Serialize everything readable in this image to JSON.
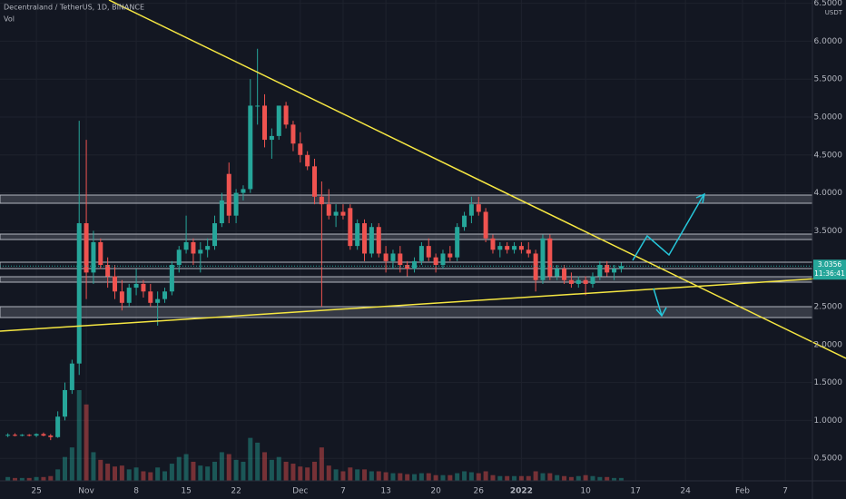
{
  "header": {
    "symbol": "Decentraland / TetherUS, 1D, BINANCE",
    "volume_label": "Vol"
  },
  "chart_data": {
    "type": "candlestick",
    "open": [
      0.8,
      0.81,
      0.8,
      0.81,
      0.8,
      0.82,
      0.8,
      0.78,
      1.05,
      1.4,
      1.75,
      3.6,
      2.95,
      3.35,
      3.05,
      2.9,
      2.7,
      2.55,
      2.75,
      2.8,
      2.7,
      2.55,
      2.6,
      2.7,
      3.05,
      3.25,
      3.35,
      3.2,
      3.25,
      3.3,
      3.6,
      4.25,
      3.7,
      4.0,
      4.05,
      5.15,
      5.15,
      4.7,
      4.75,
      5.15,
      4.9,
      4.65,
      4.5,
      4.35,
      3.95,
      3.85,
      3.7,
      3.75,
      3.8,
      3.3,
      3.6,
      3.2,
      3.55,
      3.2,
      3.1,
      3.2,
      3.05,
      3.0,
      3.1,
      3.3,
      3.15,
      3.05,
      3.2,
      3.15,
      3.55,
      3.7,
      3.85,
      3.75,
      3.4,
      3.25,
      3.3,
      3.25,
      3.3,
      3.25,
      3.2,
      2.85,
      3.4,
      2.9,
      3.0,
      2.85,
      2.8,
      2.85,
      2.8,
      2.9,
      3.05,
      2.95,
      3.0
    ],
    "high": [
      0.83,
      0.83,
      0.82,
      0.82,
      0.83,
      0.84,
      0.82,
      1.12,
      1.5,
      1.8,
      4.95,
      4.7,
      3.5,
      3.4,
      3.15,
      3.05,
      2.85,
      2.8,
      3.0,
      2.85,
      2.8,
      2.7,
      2.75,
      3.1,
      3.3,
      3.7,
      3.4,
      3.35,
      3.4,
      3.7,
      4.0,
      4.4,
      4.05,
      4.1,
      5.5,
      5.9,
      5.3,
      4.85,
      5.15,
      5.2,
      4.95,
      4.8,
      4.55,
      4.45,
      4.15,
      4.05,
      3.85,
      3.85,
      3.85,
      3.65,
      3.65,
      3.6,
      3.6,
      3.3,
      3.25,
      3.3,
      3.1,
      3.15,
      3.35,
      3.4,
      3.2,
      3.25,
      3.3,
      3.6,
      3.75,
      3.95,
      3.95,
      3.8,
      3.45,
      3.35,
      3.35,
      3.35,
      3.35,
      3.35,
      3.25,
      3.45,
      3.45,
      3.05,
      3.05,
      2.95,
      2.9,
      2.9,
      2.95,
      3.1,
      3.1,
      3.05,
      3.08
    ],
    "low": [
      0.78,
      0.79,
      0.79,
      0.79,
      0.78,
      0.79,
      0.74,
      0.77,
      1.0,
      1.35,
      1.6,
      2.6,
      2.8,
      3.0,
      2.75,
      2.6,
      2.45,
      2.5,
      2.65,
      2.62,
      2.5,
      2.25,
      2.55,
      2.65,
      2.95,
      3.2,
      3.05,
      2.95,
      3.15,
      3.25,
      3.55,
      3.6,
      3.6,
      3.9,
      4.0,
      4.9,
      4.6,
      4.45,
      4.7,
      4.85,
      4.55,
      4.4,
      4.3,
      3.85,
      2.5,
      3.65,
      3.55,
      3.65,
      3.25,
      3.25,
      3.1,
      3.15,
      3.15,
      2.95,
      3.0,
      2.95,
      2.9,
      2.95,
      3.05,
      3.1,
      2.95,
      3.0,
      3.1,
      3.1,
      3.5,
      3.6,
      3.7,
      3.35,
      3.2,
      3.15,
      3.2,
      3.2,
      3.2,
      3.15,
      2.7,
      2.8,
      2.85,
      2.85,
      2.8,
      2.75,
      2.75,
      2.65,
      2.75,
      2.85,
      2.9,
      2.85,
      2.95
    ],
    "close": [
      0.81,
      0.8,
      0.81,
      0.8,
      0.82,
      0.8,
      0.78,
      1.05,
      1.4,
      1.75,
      3.6,
      2.95,
      3.35,
      3.05,
      2.9,
      2.7,
      2.55,
      2.75,
      2.8,
      2.7,
      2.55,
      2.6,
      2.7,
      3.05,
      3.25,
      3.35,
      3.2,
      3.25,
      3.3,
      3.6,
      3.9,
      3.7,
      4.0,
      4.05,
      5.15,
      5.15,
      4.7,
      4.75,
      5.15,
      4.9,
      4.65,
      4.5,
      4.35,
      3.95,
      3.85,
      3.7,
      3.75,
      3.7,
      3.3,
      3.6,
      3.2,
      3.55,
      3.2,
      3.1,
      3.2,
      3.05,
      3.0,
      3.1,
      3.3,
      3.15,
      3.05,
      3.2,
      3.15,
      3.55,
      3.7,
      3.85,
      3.75,
      3.4,
      3.25,
      3.3,
      3.25,
      3.3,
      3.25,
      3.2,
      2.85,
      3.4,
      2.9,
      3.0,
      2.85,
      2.8,
      2.85,
      2.8,
      2.9,
      3.05,
      2.95,
      3.0,
      3.0356
    ],
    "volume": [
      4,
      3,
      3,
      3,
      4,
      4,
      5,
      12,
      25,
      35,
      95,
      80,
      30,
      22,
      18,
      15,
      16,
      12,
      14,
      10,
      9,
      14,
      10,
      18,
      25,
      28,
      20,
      16,
      15,
      20,
      30,
      28,
      22,
      20,
      45,
      40,
      30,
      22,
      25,
      20,
      18,
      15,
      14,
      20,
      35,
      16,
      12,
      10,
      14,
      12,
      12,
      10,
      10,
      9,
      8,
      8,
      7,
      7,
      8,
      8,
      6,
      6,
      6,
      8,
      10,
      9,
      8,
      10,
      6,
      5,
      5,
      5,
      5,
      5,
      10,
      8,
      8,
      6,
      5,
      4,
      5,
      6,
      5,
      4,
      4,
      3,
      3
    ],
    "up_color": "#26a69a",
    "down_color": "#ef5350",
    "ylim": [
      -0.036,
      6.543
    ],
    "yticks": [
      {
        "value": 0.5,
        "label": "0.5000"
      },
      {
        "value": 1,
        "label": "1.0000"
      },
      {
        "value": 1.5,
        "label": "1.5000"
      },
      {
        "value": 2,
        "label": "2.0000"
      },
      {
        "value": 2.5,
        "label": "2.5000"
      },
      {
        "value": 3,
        "label": "3.0000"
      },
      {
        "value": 3.5,
        "label": "3.5000"
      },
      {
        "value": 4,
        "label": "4.0000"
      },
      {
        "value": 4.5,
        "label": "4.5000"
      },
      {
        "value": 5,
        "label": "5.0000"
      },
      {
        "value": 5.5,
        "label": "5.5000"
      },
      {
        "value": 6,
        "label": "6.0000"
      },
      {
        "value": 6.5,
        "label": "6.5000"
      }
    ],
    "xlim": [
      -1.1,
      112.8
    ],
    "xticks": [
      {
        "value": 4,
        "label": "25"
      },
      {
        "value": 11,
        "label": "Nov"
      },
      {
        "value": 18,
        "label": "8"
      },
      {
        "value": 25,
        "label": "15"
      },
      {
        "value": 32,
        "label": "22"
      },
      {
        "value": 41,
        "label": "Dec"
      },
      {
        "value": 47,
        "label": "7"
      },
      {
        "value": 53,
        "label": "13"
      },
      {
        "value": 60,
        "label": "20"
      },
      {
        "value": 66,
        "label": "26"
      },
      {
        "value": 72,
        "label": "2022"
      },
      {
        "value": 81,
        "label": "10"
      },
      {
        "value": 88,
        "label": "17"
      },
      {
        "value": 95,
        "label": "24"
      },
      {
        "value": 103,
        "label": "Feb"
      },
      {
        "value": 109,
        "label": "7"
      }
    ],
    "currency": "USDT",
    "last_price": 3.0356,
    "countdown": "11:36:41",
    "grid": true
  }
}
